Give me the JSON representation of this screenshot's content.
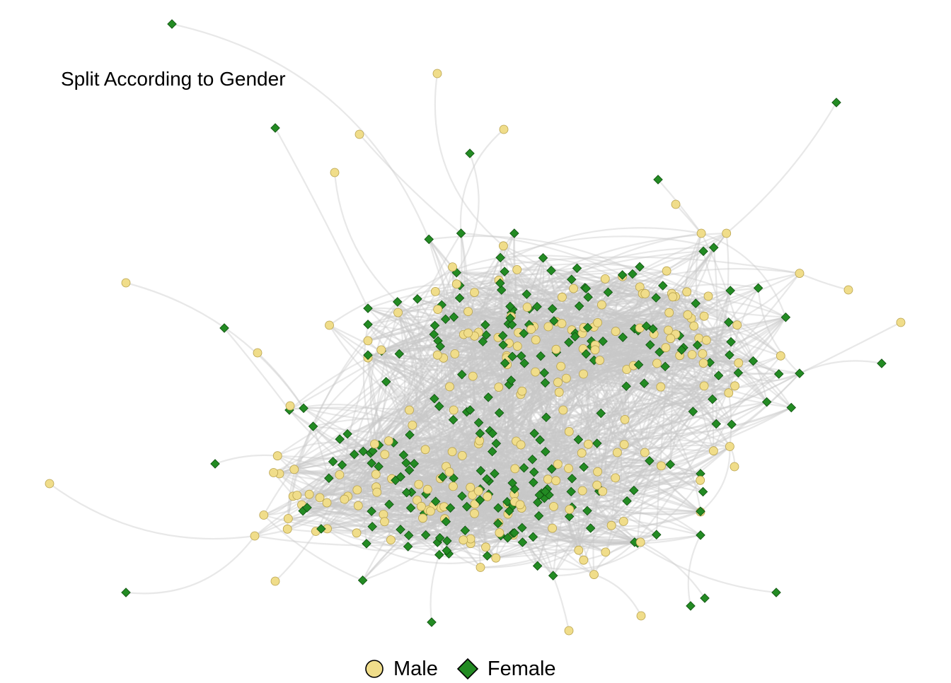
{
  "chart_data": {
    "type": "network",
    "title": "Split According to Gender",
    "legend": {
      "position": "bottom-center",
      "entries": [
        {
          "label": "Male",
          "shape": "circle",
          "color": "#f0dd8a",
          "stroke": "#b8a24e"
        },
        {
          "label": "Female",
          "shape": "diamond",
          "color": "#238b23",
          "stroke": "#0f4f0f"
        }
      ]
    },
    "edge_color": "#c8c8c8",
    "layout": "force-directed, two dense clusters (upper-right and lower-left) with peripheral pendant nodes",
    "nodes_visible": "approx. 480 nodes; roughly half Male (circles) and half Female (diamonds)"
  }
}
